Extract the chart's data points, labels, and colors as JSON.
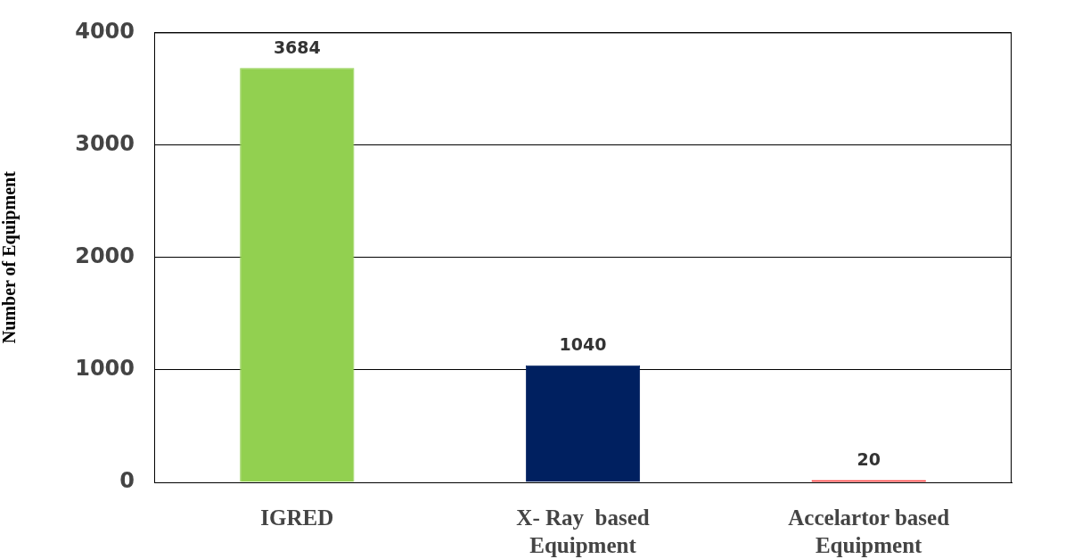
{
  "chart_data": {
    "type": "bar",
    "ylabel": "Number of Equipment",
    "categories": [
      "IGRED",
      "X- Ray  based Equipment",
      "Accelartor based Equipment"
    ],
    "values": [
      3684,
      1040,
      20
    ],
    "colors": [
      "#92d050",
      "#002060",
      "#ff0000"
    ],
    "ylim": [
      0,
      4000
    ],
    "yticks": [
      0,
      1000,
      2000,
      3000,
      4000
    ],
    "grid": "y",
    "legend": false,
    "data_labels": true
  }
}
